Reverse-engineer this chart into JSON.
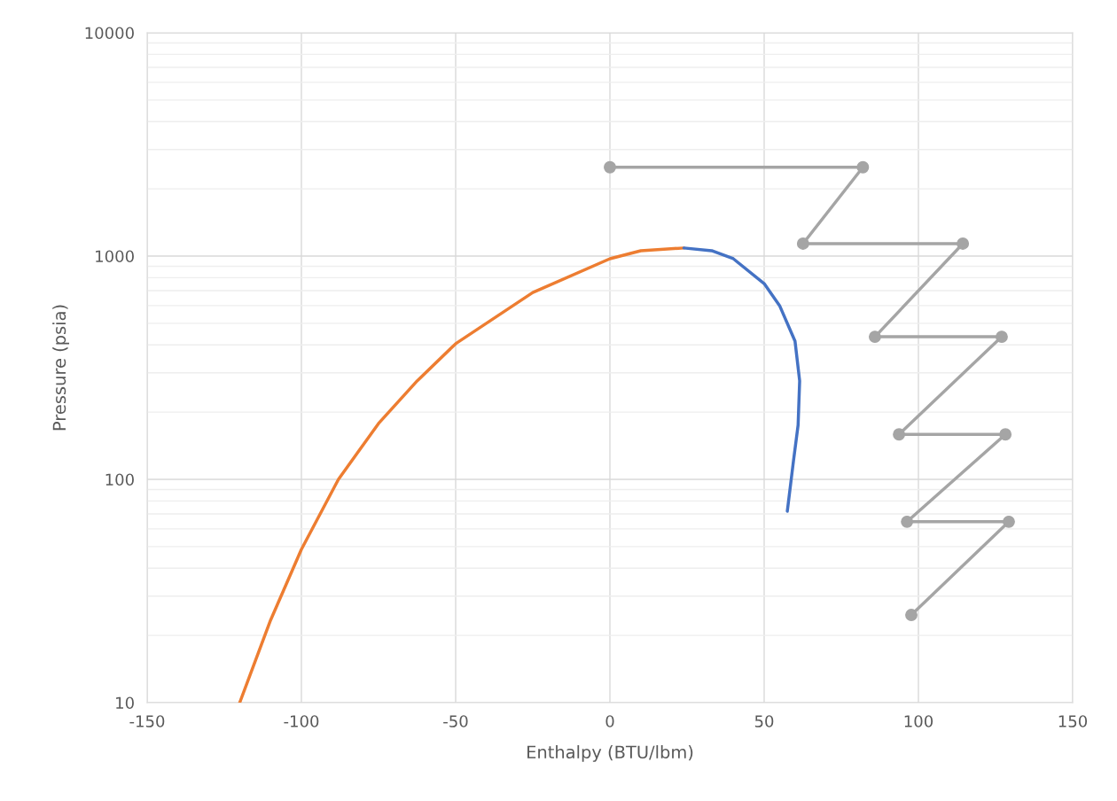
{
  "chart_data": {
    "type": "line",
    "xlabel": "Enthalpy (BTU/lbm)",
    "ylabel": "Pressure (psia)",
    "log": "y",
    "grid": true,
    "legend": false,
    "xlim": [
      -150,
      150
    ],
    "xticks": [
      -150,
      -100,
      -50,
      0,
      50,
      100,
      150
    ],
    "ylim": [
      10,
      10000
    ],
    "yticks": [
      10,
      100,
      1000,
      10000
    ],
    "series": [
      {
        "color": "#ed7d31",
        "marker": "none",
        "x": [
          -120,
          -110,
          -100,
          -88,
          -75,
          -62.5,
          -50,
          -25,
          0,
          10,
          24
        ],
        "values": [
          10,
          23.4,
          48.6,
          100,
          178,
          276,
          405,
          687,
          973,
          1056,
          1087
        ]
      },
      {
        "color": "#4472c4",
        "marker": "none",
        "x": [
          24,
          33,
          40,
          50,
          55,
          60,
          61.5,
          61,
          59.5,
          57.5
        ],
        "values": [
          1087,
          1057,
          973,
          753,
          600,
          416,
          276,
          175,
          121,
          72
        ]
      },
      {
        "color": "#a5a5a5",
        "marker": "circle",
        "x": [
          0,
          82,
          62.6,
          114.4,
          85.9,
          127,
          93.7,
          128.2,
          96.3,
          129.3,
          97.7
        ],
        "values": [
          2500,
          2500,
          1137,
          1137,
          435,
          435,
          159,
          159,
          64.6,
          64.6,
          24.7
        ]
      }
    ]
  }
}
